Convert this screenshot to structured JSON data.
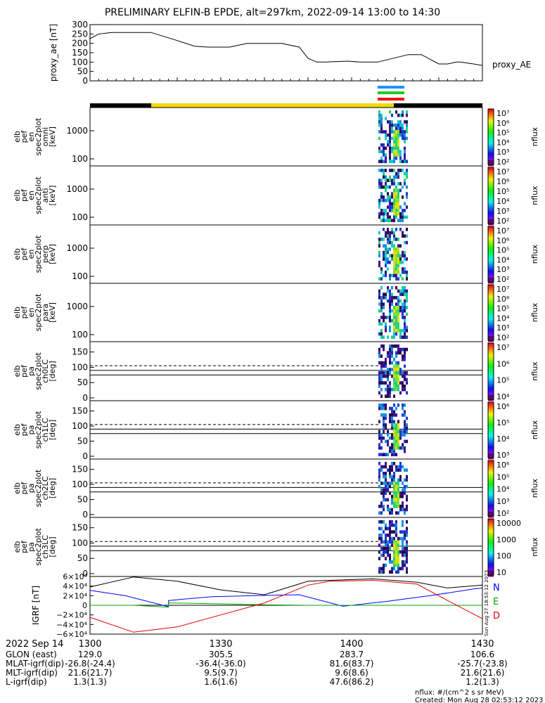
{
  "title": "PRELIMINARY ELFIN-B EPDE, alt=297km, 2022-09-14 13:00 to 14:30",
  "chart_data": [
    {
      "type": "line",
      "panel": "proxy_ae",
      "ylabel": [
        "proxy_ae",
        "[nT]"
      ],
      "yticks": [
        "300",
        "250",
        "200",
        "150",
        "100",
        "50",
        "0"
      ],
      "ylim": [
        0,
        300
      ],
      "series_label": "proxy_AE",
      "x_minutes": [
        0,
        2,
        5,
        14,
        20,
        24,
        27,
        32,
        36,
        44,
        48,
        50,
        52,
        54,
        56,
        59,
        62,
        66,
        73,
        76,
        80,
        82,
        84,
        85,
        88,
        90
      ],
      "values": [
        225,
        250,
        258,
        258,
        215,
        185,
        180,
        180,
        200,
        200,
        180,
        120,
        100,
        100,
        102,
        105,
        100,
        100,
        140,
        140,
        90,
        90,
        100,
        100,
        90,
        82
      ]
    },
    {
      "type": "heatmap",
      "ylabel": [
        "elb",
        "pef",
        "en",
        "spec2plot",
        "omni",
        "[keV]"
      ],
      "yticks": [
        "1000",
        "100"
      ],
      "colorbar_ticks": [
        "10⁷",
        "10⁶",
        "10⁵",
        "10⁴",
        "10³",
        "10²"
      ],
      "colorbar_label": "nflux"
    },
    {
      "type": "heatmap",
      "ylabel": [
        "elb",
        "pef",
        "en",
        "spec2plot",
        "anti",
        "[keV]"
      ],
      "yticks": [
        "1000",
        "100"
      ],
      "colorbar_ticks": [
        "10⁷",
        "10⁶",
        "10⁵",
        "10⁴",
        "10³",
        "10²"
      ],
      "colorbar_label": "nflux"
    },
    {
      "type": "heatmap",
      "ylabel": [
        "elb",
        "pef",
        "en",
        "spec2plot",
        "perp",
        "[keV]"
      ],
      "yticks": [
        "1000",
        "100"
      ],
      "colorbar_ticks": [
        "10⁷",
        "10⁶",
        "10⁵",
        "10⁴",
        "10³",
        "10²"
      ],
      "colorbar_label": "nflux"
    },
    {
      "type": "heatmap",
      "ylabel": [
        "elb",
        "pef",
        "en",
        "spec2plot",
        "para",
        "[keV]"
      ],
      "yticks": [
        "1000",
        "100"
      ],
      "colorbar_ticks": [
        "10⁷",
        "10⁶",
        "10⁵",
        "10⁴",
        "10³",
        "10²"
      ],
      "colorbar_label": "nflux"
    },
    {
      "type": "heatmap",
      "ylabel": [
        "elb",
        "pef",
        "pa",
        "spec2plot",
        "ch0LC",
        "[deg]"
      ],
      "yticks": [
        "150",
        "100",
        "50",
        "0"
      ],
      "colorbar_ticks": [
        "10⁷",
        "10⁶",
        "10⁵",
        "10⁴"
      ],
      "colorbar_label": "nflux"
    },
    {
      "type": "heatmap",
      "ylabel": [
        "elb",
        "pef",
        "pa",
        "spec2plot",
        "ch1LC",
        "[deg]"
      ],
      "yticks": [
        "150",
        "100",
        "50",
        "0"
      ],
      "colorbar_ticks": [
        "10⁶",
        "10⁵",
        "10⁴",
        "10³"
      ],
      "colorbar_label": "nflux"
    },
    {
      "type": "heatmap",
      "ylabel": [
        "elb",
        "pef",
        "pa",
        "spec2plot",
        "ch2LC",
        "[deg]"
      ],
      "yticks": [
        "150",
        "100",
        "50",
        "0"
      ],
      "colorbar_ticks": [
        "10⁶",
        "10⁵",
        "10⁴",
        "10³",
        "10²"
      ],
      "colorbar_label": "nflux"
    },
    {
      "type": "heatmap",
      "ylabel": [
        "elb",
        "pef",
        "pa",
        "spec2plot",
        "ch3LC",
        "[deg]"
      ],
      "yticks": [
        "150",
        "100",
        "50",
        "0"
      ],
      "colorbar_ticks": [
        "10000",
        "1000",
        "100",
        "10"
      ],
      "colorbar_label": "nflux"
    },
    {
      "type": "line",
      "panel": "IGRF",
      "ylabel": [
        "IGRF",
        "[nT]"
      ],
      "yticks": [
        "6×10⁴",
        "4×10⁴",
        "2×10⁴",
        "0",
        "−2×10⁴",
        "−4×10⁴",
        "−6×10⁴"
      ],
      "ylim": [
        -60000,
        60000
      ],
      "legend": [
        "N",
        "E",
        "D"
      ],
      "series_colors": [
        "#0000ff",
        "#00aa00",
        "#dd0000"
      ],
      "series": [
        {
          "name": "N",
          "x_minutes": [
            0,
            8,
            18,
            18.01,
            28,
            38,
            48,
            58,
            68,
            78,
            88,
            90
          ],
          "values": [
            31000,
            20000,
            -3000,
            10000,
            18000,
            20000,
            22000,
            -2000,
            8000,
            20000,
            34000,
            36000
          ]
        },
        {
          "name": "E",
          "x_minutes": [
            0,
            10,
            18,
            18.01,
            30,
            40,
            50,
            60,
            70,
            80,
            90
          ],
          "values": [
            0,
            0,
            -4000,
            5000,
            3000,
            1000,
            0,
            0,
            0,
            0,
            0
          ]
        },
        {
          "name": "D",
          "x_minutes": [
            0,
            10,
            20,
            30,
            40,
            50,
            55,
            65,
            75,
            82,
            90
          ],
          "values": [
            -25000,
            -56000,
            -45000,
            -20000,
            5000,
            42000,
            50000,
            52000,
            44000,
            10000,
            -28000
          ]
        },
        {
          "name": "",
          "x_minutes": [
            0,
            10,
            20,
            30,
            40,
            50,
            55,
            65,
            75,
            82,
            90
          ],
          "values": [
            38000,
            59000,
            50000,
            32000,
            22000,
            50000,
            52000,
            55000,
            48000,
            36000,
            42000
          ]
        }
      ]
    }
  ],
  "footer": {
    "date_label": "2022 Sep 14",
    "time_ticks": [
      "1300",
      "1330",
      "1400",
      "1430"
    ],
    "rows": [
      {
        "label": "GLON (east)",
        "values": [
          "129.0",
          "305.5",
          "283.7",
          "106.6"
        ]
      },
      {
        "label": "MLAT-igrf(dip)",
        "values": [
          "-26.8(-24.4)",
          "-36.4(-36.0)",
          "81.6(83.7)",
          "-25.7(-23.8)"
        ]
      },
      {
        "label": "MLT-igrf(dip)",
        "values": [
          "21.6(21.7)",
          "9.5(9.7)",
          "9.6(8.6)",
          "21.6(21.6)"
        ]
      },
      {
        "label": "L-igrf(dip)",
        "values": [
          "1.3(1.3)",
          "1.6(1.6)",
          "47.6(86.2)",
          "1.2(1.3)"
        ]
      }
    ],
    "units_note": "nflux: #/(cm^2 s sr MeV)",
    "created": "Created: Mon Aug 28 02:53:12 2023",
    "side_stamp": "Sun Aug 27 18:53:12 2023"
  },
  "colors": {
    "orbit_bar_yellow": "#f4d800",
    "orbit_bar_black": "#000000",
    "marker_blue": "#1e90ff",
    "marker_green": "#22cc22",
    "marker_red": "#ee1111"
  }
}
